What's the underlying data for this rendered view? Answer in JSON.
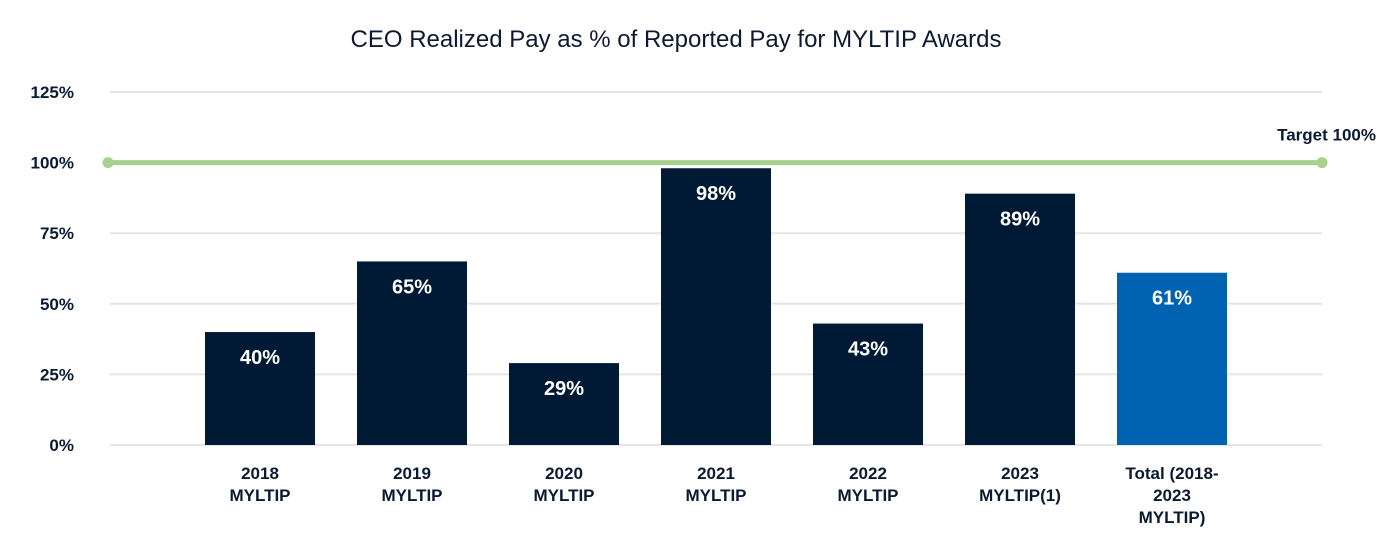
{
  "chart_data": {
    "type": "bar",
    "title": "CEO Realized Pay as % of Reported Pay for MYLTIP Awards",
    "categories": [
      [
        "2018",
        "MYLTIP"
      ],
      [
        "2019",
        "MYLTIP"
      ],
      [
        "2020",
        "MYLTIP"
      ],
      [
        "2021",
        "MYLTIP"
      ],
      [
        "2022",
        "MYLTIP"
      ],
      [
        "2023",
        "MYLTIP(1)"
      ],
      [
        "Total (2018-",
        "2023",
        "MYLTIP)"
      ]
    ],
    "values": [
      40,
      65,
      29,
      98,
      43,
      89,
      61
    ],
    "data_labels": [
      "40%",
      "65%",
      "29%",
      "98%",
      "43%",
      "89%",
      "61%"
    ],
    "ylim": [
      0,
      125
    ],
    "yticks": [
      0,
      25,
      50,
      75,
      100,
      125
    ],
    "ytick_labels": [
      "0%",
      "25%",
      "50%",
      "75%",
      "100%",
      "125%"
    ],
    "grid": true,
    "reference_line": {
      "value": 100,
      "label": "Target 100%",
      "color": "#a9d18e"
    },
    "colors": {
      "bar": "#001a35",
      "highlight": "#0063b1",
      "grid": "#e5e5e5",
      "text": "#0b1a33"
    },
    "highlight_index": 6
  }
}
